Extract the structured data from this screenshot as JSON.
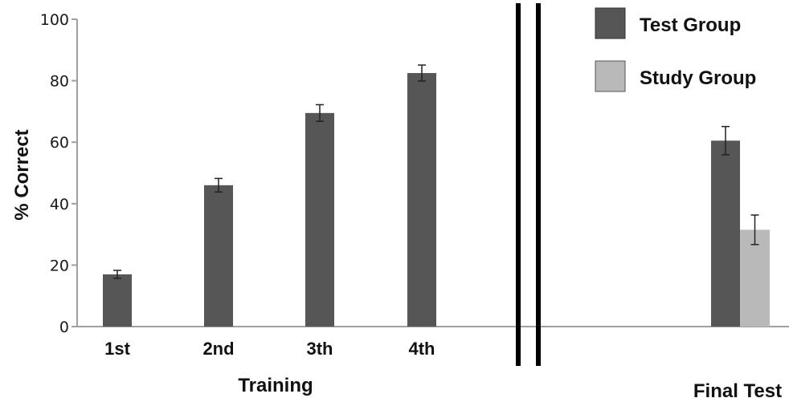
{
  "chart_data": {
    "type": "bar",
    "ylabel": "% Correct",
    "ylim": [
      0,
      100
    ],
    "yticks": [
      0,
      20,
      40,
      60,
      80,
      100
    ],
    "grid": false,
    "legend_position": "top-right",
    "colors": {
      "test": "#565656",
      "study": "#b9b9b9",
      "separator": "#000000"
    },
    "panels": [
      {
        "xlabel": "Training",
        "categories": [
          "1st",
          "2nd",
          "3th",
          "4th"
        ],
        "series": [
          {
            "name": "Test Group",
            "values": [
              17,
              46,
              69.5,
              82.5
            ],
            "errors": [
              1.3,
              2.2,
              2.7,
              2.6
            ]
          }
        ]
      },
      {
        "xlabel": "Final Test",
        "categories": [
          ""
        ],
        "series": [
          {
            "name": "Test Group",
            "values": [
              60.5
            ],
            "errors": [
              4.6
            ]
          },
          {
            "name": "Study Group",
            "values": [
              31.5
            ],
            "errors": [
              4.8
            ]
          }
        ]
      }
    ],
    "legend": [
      "Test Group",
      "Study Group"
    ]
  }
}
